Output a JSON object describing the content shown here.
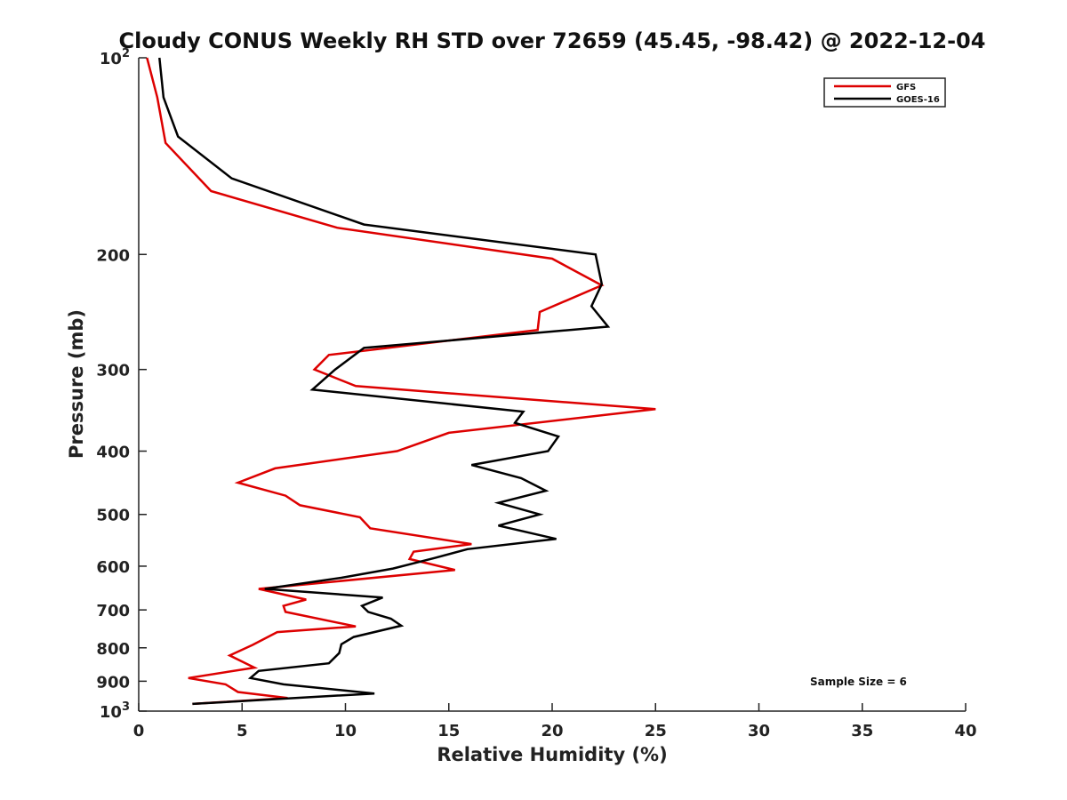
{
  "chart_data": {
    "type": "line",
    "title": "Cloudy CONUS Weekly RH STD over 72659 (45.45, -98.42) @ 2022-12-04",
    "xlabel": "Relative Humidity (%)",
    "ylabel": "Pressure (mb)",
    "xlim": [
      0,
      40
    ],
    "ylim": [
      100,
      1000
    ],
    "y_scale": "log",
    "y_reversed": true,
    "x_ticks": [
      0,
      5,
      10,
      15,
      20,
      25,
      30,
      35,
      40
    ],
    "y_ticks": [
      {
        "value": 100,
        "label": "10",
        "exp": "2"
      },
      {
        "value": 200,
        "label": "200"
      },
      {
        "value": 300,
        "label": "300"
      },
      {
        "value": 400,
        "label": "400"
      },
      {
        "value": 500,
        "label": "500"
      },
      {
        "value": 600,
        "label": "600"
      },
      {
        "value": 700,
        "label": "700"
      },
      {
        "value": 800,
        "label": "800"
      },
      {
        "value": 900,
        "label": "900"
      },
      {
        "value": 1000,
        "label": "10",
        "exp": "3"
      }
    ],
    "grid": false,
    "legend_position": "top-right",
    "annotation": "Sample Size = 6",
    "series": [
      {
        "name": "GFS",
        "color": "#dd0000",
        "points": [
          [
            0.4,
            100
          ],
          [
            0.9,
            115
          ],
          [
            1.3,
            135
          ],
          [
            3.5,
            160
          ],
          [
            9.6,
            182
          ],
          [
            20.0,
            203
          ],
          [
            22.4,
            223
          ],
          [
            19.4,
            245
          ],
          [
            19.3,
            261
          ],
          [
            9.2,
            285
          ],
          [
            8.5,
            300
          ],
          [
            10.5,
            318
          ],
          [
            25.0,
            345
          ],
          [
            15.0,
            375
          ],
          [
            12.5,
            400
          ],
          [
            6.6,
            425
          ],
          [
            4.8,
            447
          ],
          [
            7.1,
            468
          ],
          [
            7.8,
            484
          ],
          [
            10.7,
            505
          ],
          [
            11.2,
            525
          ],
          [
            16.1,
            555
          ],
          [
            13.3,
            570
          ],
          [
            13.1,
            585
          ],
          [
            15.3,
            608
          ],
          [
            5.8,
            650
          ],
          [
            8.1,
            675
          ],
          [
            7.0,
            690
          ],
          [
            7.1,
            705
          ],
          [
            10.5,
            742
          ],
          [
            6.7,
            757
          ],
          [
            5.5,
            792
          ],
          [
            4.4,
            822
          ],
          [
            5.6,
            858
          ],
          [
            2.4,
            890
          ],
          [
            4.2,
            910
          ],
          [
            4.8,
            935
          ],
          [
            7.2,
            955
          ],
          [
            2.6,
            975
          ]
        ]
      },
      {
        "name": "GOES-16",
        "color": "#000000",
        "points": [
          [
            1.0,
            100
          ],
          [
            1.2,
            115
          ],
          [
            1.9,
            132
          ],
          [
            4.5,
            153
          ],
          [
            10.9,
            180
          ],
          [
            22.1,
            200
          ],
          [
            22.4,
            222
          ],
          [
            21.9,
            240
          ],
          [
            22.7,
            258
          ],
          [
            10.9,
            278
          ],
          [
            9.5,
            300
          ],
          [
            8.4,
            322
          ],
          [
            18.6,
            348
          ],
          [
            18.2,
            362
          ],
          [
            20.3,
            380
          ],
          [
            19.8,
            400
          ],
          [
            16.1,
            420
          ],
          [
            18.5,
            440
          ],
          [
            19.7,
            460
          ],
          [
            17.4,
            480
          ],
          [
            19.4,
            500
          ],
          [
            17.4,
            520
          ],
          [
            20.2,
            545
          ],
          [
            15.9,
            565
          ],
          [
            14.3,
            583
          ],
          [
            12.3,
            605
          ],
          [
            9.8,
            625
          ],
          [
            6.1,
            650
          ],
          [
            11.8,
            670
          ],
          [
            10.8,
            690
          ],
          [
            11.1,
            705
          ],
          [
            12.2,
            722
          ],
          [
            12.7,
            740
          ],
          [
            10.4,
            770
          ],
          [
            9.8,
            790
          ],
          [
            9.7,
            815
          ],
          [
            9.2,
            845
          ],
          [
            5.8,
            868
          ],
          [
            5.4,
            890
          ],
          [
            7.0,
            910
          ],
          [
            11.4,
            940
          ],
          [
            2.6,
            975
          ]
        ]
      }
    ]
  }
}
